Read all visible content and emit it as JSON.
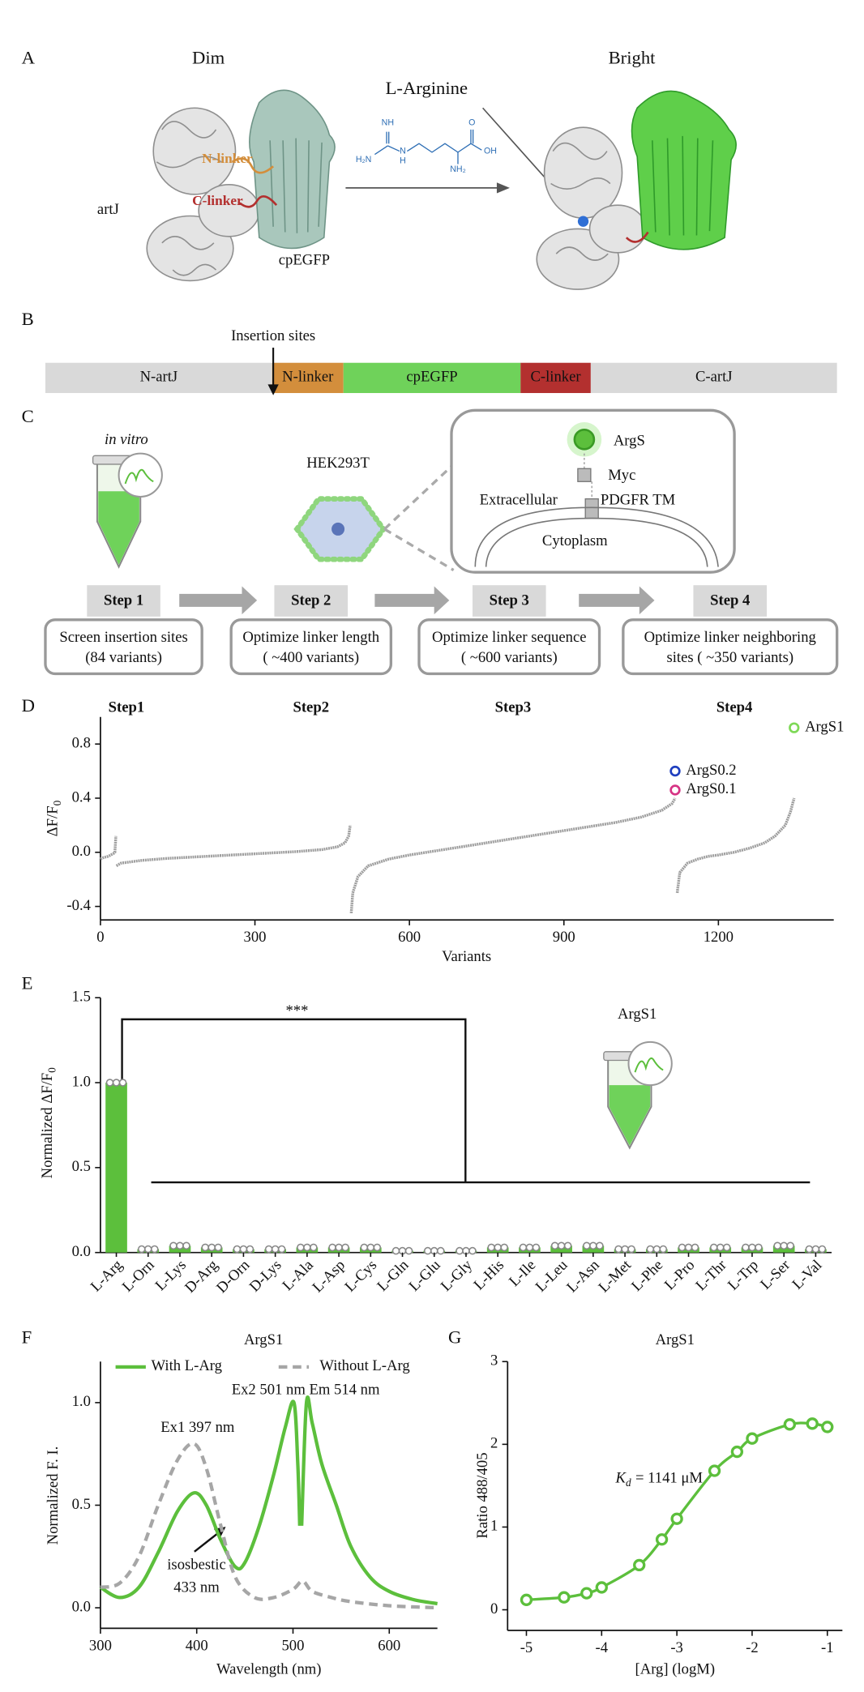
{
  "panel_labels": [
    "A",
    "B",
    "C",
    "D",
    "E",
    "F",
    "G"
  ],
  "panel_a": {
    "dim": "Dim",
    "bright": "Bright",
    "ligand": "L-Arginine",
    "n_linker": "N-linker",
    "c_linker": "C-linker",
    "sensor_domain": "artJ",
    "fp": "cpEGFP",
    "structure_labels": [
      "NH",
      "H₂N",
      "N",
      "H",
      "O",
      "OH",
      "NH₂"
    ]
  },
  "panel_b": {
    "insertion": "Insertion sites",
    "segments": [
      {
        "label": "N-artJ",
        "color": "#d9d9d9"
      },
      {
        "label": "N-linker",
        "color": "#d38e3c"
      },
      {
        "label": "cpEGFP",
        "color": "#6fd25a"
      },
      {
        "label": "C-linker",
        "color": "#b3302f"
      },
      {
        "label": "C-artJ",
        "color": "#d9d9d9"
      }
    ]
  },
  "panel_c": {
    "in_vitro": "in vitro",
    "cell": "HEK293T",
    "inset": {
      "sensor": "ArgS",
      "tag": "Myc",
      "outside": "Extracellular",
      "anchor": "PDGFR TM",
      "inside": "Cytoplasm"
    },
    "steps": [
      {
        "title": "Step 1",
        "lines": [
          "Screen insertion sites",
          "(84 variants)"
        ]
      },
      {
        "title": "Step 2",
        "lines": [
          "Optimize linker length",
          "( ~400 variants)"
        ]
      },
      {
        "title": "Step 3",
        "lines": [
          "Optimize linker sequence",
          "( ~600 variants)"
        ]
      },
      {
        "title": "Step 4",
        "lines": [
          "Optimize linker neighboring",
          "sites ( ~350 variants)"
        ]
      }
    ]
  },
  "chart_data": [
    {
      "type": "scatter",
      "xlabel": "Variants",
      "ylabel": {
        "text": "ΔF/F",
        "subscript": "0"
      },
      "xlim": [
        0,
        1424
      ],
      "ylim": [
        -0.5,
        1.0
      ],
      "xticks": [
        0,
        300,
        600,
        900,
        1200
      ],
      "yticks": [
        -0.4,
        {
          "value": 0,
          "label": "0.0"
        },
        0.4,
        0.8
      ],
      "series": [
        {
          "name": "Step1",
          "color": "#9e9e9e",
          "style": "line",
          "x": [
            0,
            5,
            10,
            15,
            20,
            25,
            28,
            29,
            30
          ],
          "values": [
            -0.05,
            -0.04,
            -0.035,
            -0.03,
            -0.02,
            -0.01,
            0.0,
            0.06,
            0.12
          ]
        },
        {
          "name": "Step2",
          "color": "#9e9e9e",
          "style": "line",
          "x": [
            31,
            40,
            80,
            130,
            180,
            230,
            280,
            330,
            380,
            430,
            460,
            475,
            482,
            485
          ],
          "values": [
            -0.1,
            -0.08,
            -0.06,
            -0.045,
            -0.035,
            -0.025,
            -0.015,
            -0.005,
            0.005,
            0.02,
            0.04,
            0.07,
            0.12,
            0.2
          ]
        },
        {
          "name": "Step3",
          "color": "#9e9e9e",
          "style": "line",
          "x": [
            487,
            490,
            500,
            520,
            560,
            600,
            650,
            700,
            750,
            800,
            850,
            900,
            950,
            1000,
            1050,
            1090,
            1110,
            1116
          ],
          "values": [
            -0.45,
            -0.3,
            -0.18,
            -0.1,
            -0.05,
            -0.02,
            0.01,
            0.04,
            0.07,
            0.1,
            0.13,
            0.16,
            0.19,
            0.22,
            0.26,
            0.31,
            0.36,
            0.4
          ]
        },
        {
          "name": "Step4",
          "color": "#9e9e9e",
          "style": "line",
          "x": [
            1120,
            1125,
            1140,
            1160,
            1180,
            1200,
            1230,
            1260,
            1290,
            1310,
            1330,
            1340,
            1347
          ],
          "values": [
            -0.3,
            -0.15,
            -0.08,
            -0.05,
            -0.03,
            -0.02,
            0.0,
            0.03,
            0.07,
            0.12,
            0.2,
            0.3,
            0.4
          ]
        },
        {
          "name": "ArgS1",
          "color": "#7ed957",
          "style": "marker",
          "x": [
            1347
          ],
          "values": [
            0.92
          ]
        },
        {
          "name": "ArgS0.2",
          "color": "#1f3fbf",
          "style": "marker",
          "x": [
            1116
          ],
          "values": [
            0.6
          ]
        },
        {
          "name": "ArgS0.1",
          "color": "#d63384",
          "style": "marker",
          "x": [
            1116
          ],
          "values": [
            0.46
          ]
        }
      ]
    },
    {
      "type": "bar",
      "title": "ArgS1",
      "ylabel": {
        "text": "Normalized ΔF/F",
        "subscript": "0"
      },
      "significance": "***",
      "color": "#5cbf3c",
      "ylim": [
        0,
        1.5
      ],
      "yticks": [
        {
          "value": 0,
          "label": "0.0"
        },
        0.5,
        {
          "value": 1,
          "label": "1.0"
        },
        1.5
      ],
      "categories": [
        "L-Arg",
        "L-Orn",
        "L-Lys",
        "D-Arg",
        "D-Orn",
        "D-Lys",
        "L-Ala",
        "L-Asp",
        "L-Cys",
        "L-Gln",
        "L-Glu",
        "L-Gly",
        "L-His",
        "L-Ile",
        "L-Leu",
        "L-Asn",
        "L-Met",
        "L-Phe",
        "L-Pro",
        "L-Thr",
        "L-Trp",
        "L-Ser",
        "L-Val"
      ],
      "values": [
        1.0,
        0.02,
        0.04,
        0.03,
        0.02,
        0.02,
        0.03,
        0.03,
        0.03,
        0.01,
        0.01,
        0.01,
        0.03,
        0.03,
        0.04,
        0.04,
        0.02,
        0.02,
        0.03,
        0.03,
        0.03,
        0.04,
        0.02
      ]
    },
    {
      "type": "line",
      "title": "ArgS1",
      "xlabel": "Wavelength (nm)",
      "ylabel": "Normalized F. I.",
      "legend": "top",
      "annotations": [
        "Ex1 397 nm",
        "Ex2 501 nm Em 514 nm",
        "isosbestic",
        "433 nm"
      ],
      "xlim": [
        300,
        650
      ],
      "ylim": [
        -0.1,
        1.2
      ],
      "xticks": [
        300,
        400,
        500,
        600
      ],
      "yticks": [
        {
          "value": 0,
          "label": "0.0"
        },
        0.5,
        {
          "value": 1,
          "label": "1.0"
        }
      ],
      "series": [
        {
          "name": "With L-Arg",
          "color": "#5cbf3c",
          "dashed": false,
          "x": [
            300,
            320,
            340,
            360,
            380,
            397,
            410,
            425,
            440,
            450,
            465,
            480,
            492,
            501,
            505,
            507,
            null,
            509,
            514,
            520,
            530,
            545,
            560,
            580,
            600,
            625,
            650
          ],
          "values": [
            0.1,
            0.05,
            0.1,
            0.27,
            0.47,
            0.56,
            0.5,
            0.33,
            0.2,
            0.22,
            0.4,
            0.65,
            0.88,
            1.0,
            0.7,
            0.4,
            null,
            0.4,
            1.0,
            0.9,
            0.7,
            0.5,
            0.3,
            0.15,
            0.08,
            0.04,
            0.02
          ]
        },
        {
          "name": "Without L-Arg",
          "color": "#a6a6a6",
          "dashed": true,
          "x": [
            300,
            320,
            340,
            360,
            380,
            397,
            410,
            425,
            440,
            460,
            480,
            500,
            510,
            520,
            540,
            560,
            600,
            650
          ],
          "values": [
            0.1,
            0.12,
            0.25,
            0.5,
            0.72,
            0.8,
            0.68,
            0.4,
            0.15,
            0.05,
            0.05,
            0.09,
            0.13,
            0.08,
            0.05,
            0.03,
            0.01,
            0.0
          ]
        }
      ]
    },
    {
      "type": "scatter",
      "title": "ArgS1",
      "xlabel": "[Arg] (logM)",
      "ylabel": "Ratio 488/405",
      "annotation": {
        "text": "K",
        "subscript": "d",
        "after": "= 1141 μM"
      },
      "color": "#5cbf3c",
      "fit_line": true,
      "xlim": [
        -5.25,
        -0.8
      ],
      "ylim": [
        -0.25,
        3
      ],
      "xticks": [
        -5,
        -4,
        -3,
        -2,
        -1
      ],
      "yticks": [
        0,
        1,
        2,
        3
      ],
      "x": [
        -5,
        -4.5,
        -4.2,
        -4,
        -3.5,
        -3.2,
        -3,
        -2.5,
        -2.2,
        -2,
        -1.5,
        -1.2,
        -1
      ],
      "values": [
        0.12,
        0.15,
        0.2,
        0.27,
        0.54,
        0.85,
        1.1,
        1.68,
        1.91,
        2.07,
        2.24,
        2.25,
        2.21
      ]
    }
  ]
}
